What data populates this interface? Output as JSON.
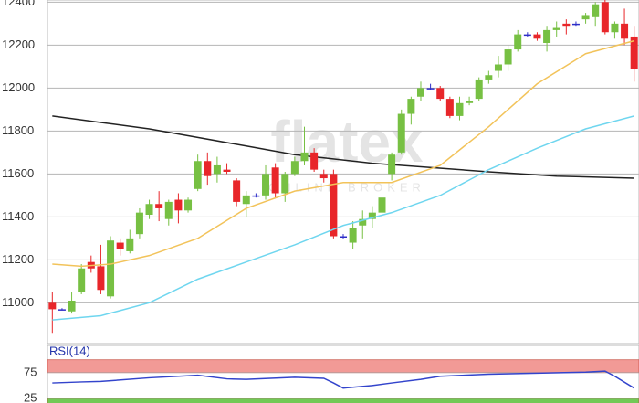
{
  "chart_data": [
    {
      "type": "candlestick",
      "watermark": "flatex",
      "watermark_sub": "ONLINE BROKER",
      "open": [
        11000,
        10970,
        10960,
        11050,
        11190,
        11170,
        11030,
        11280,
        11240,
        11320,
        11410,
        11460,
        11390,
        11480,
        11430,
        11530,
        11660,
        11600,
        11620,
        11570,
        11460,
        11500,
        11500,
        11630,
        11510,
        11600,
        11660,
        11700,
        11600,
        11600,
        11310,
        11280,
        11360,
        11390,
        11420,
        11600,
        11700,
        11880,
        11960,
        12000,
        12000,
        11950,
        11870,
        11930,
        11950,
        12040,
        12080,
        12110,
        12180,
        12250,
        12250,
        12210,
        12270,
        12300,
        12300,
        12320,
        12330,
        12400,
        12260,
        12300,
        12240
      ],
      "high": [
        11050,
        10975,
        11050,
        11180,
        11220,
        11270,
        11310,
        11300,
        11340,
        11440,
        11480,
        11520,
        11480,
        11510,
        11490,
        11690,
        11700,
        11680,
        11650,
        11580,
        11520,
        11510,
        11640,
        11650,
        11610,
        11680,
        11820,
        11720,
        11620,
        11620,
        11320,
        11380,
        11430,
        11450,
        11500,
        11700,
        11900,
        11960,
        12030,
        12020,
        12010,
        11960,
        11960,
        11960,
        12050,
        12080,
        12150,
        12200,
        12270,
        12260,
        12260,
        12290,
        12310,
        12320,
        12310,
        12350,
        12400,
        12410,
        12310,
        12370,
        12290
      ],
      "low": [
        10860,
        10965,
        10950,
        11040,
        11140,
        11040,
        11020,
        11220,
        11230,
        11300,
        11390,
        11380,
        11360,
        11370,
        11420,
        11520,
        11550,
        11560,
        11600,
        11450,
        11400,
        11490,
        11480,
        11490,
        11470,
        11590,
        11640,
        11610,
        11560,
        11300,
        11300,
        11250,
        11300,
        11350,
        11400,
        11570,
        11690,
        11830,
        11940,
        11990,
        11940,
        11860,
        11850,
        11920,
        11940,
        12020,
        12050,
        12080,
        12170,
        12240,
        12220,
        12170,
        12240,
        12250,
        12290,
        12300,
        12290,
        12250,
        12230,
        12200,
        12030
      ],
      "close": [
        10970,
        10970,
        11010,
        11160,
        11160,
        11060,
        11290,
        11250,
        11300,
        11420,
        11460,
        11440,
        11470,
        11430,
        11480,
        11660,
        11590,
        11640,
        11610,
        11470,
        11500,
        11500,
        11600,
        11510,
        11600,
        11660,
        11700,
        11620,
        11580,
        11310,
        11310,
        11350,
        11390,
        11420,
        11490,
        11690,
        11880,
        11950,
        12000,
        12000,
        11950,
        11870,
        11930,
        11940,
        12040,
        12060,
        12110,
        12180,
        12250,
        12250,
        12230,
        12270,
        12280,
        12290,
        12300,
        12340,
        12390,
        12260,
        12300,
        12230,
        12090
      ],
      "up_color": "#77c043",
      "down_color": "#e8262a",
      "doji_color": "#2d2dc8",
      "overlays": [
        {
          "color": "#222222",
          "x": [
            0,
            5,
            10,
            15,
            20,
            25,
            33,
            45,
            52,
            60
          ],
          "values": [
            11870,
            11840,
            11810,
            11770,
            11730,
            11690,
            11650,
            11610,
            11590,
            11580
          ]
        },
        {
          "color": "#f2c35a",
          "x": [
            0,
            3,
            6,
            10,
            15,
            20,
            25,
            30,
            35,
            40,
            45,
            50,
            55,
            60
          ],
          "values": [
            11180,
            11170,
            11180,
            11220,
            11300,
            11440,
            11520,
            11560,
            11560,
            11640,
            11820,
            12020,
            12160,
            12220
          ]
        },
        {
          "color": "#6fd6ef",
          "x": [
            0,
            5,
            10,
            15,
            20,
            25,
            30,
            35,
            40,
            45,
            50,
            55,
            60
          ],
          "values": [
            10920,
            10940,
            11000,
            11110,
            11190,
            11270,
            11360,
            11420,
            11500,
            11620,
            11720,
            11810,
            11870
          ]
        }
      ],
      "xlim": [
        -0.5,
        60.5
      ],
      "ylim": [
        10810,
        12410
      ],
      "yticks": [
        11000,
        11200,
        11400,
        11600,
        11800,
        12000,
        12200,
        12400
      ],
      "grid": true
    },
    {
      "type": "line",
      "title": "RSI(14)",
      "color": "#3344cc",
      "x": [
        0,
        3,
        5,
        10,
        15,
        18,
        20,
        25,
        28,
        29,
        30,
        33,
        35,
        38,
        40,
        45,
        50,
        55,
        57,
        58,
        60
      ],
      "values": [
        55,
        57,
        58,
        65,
        70,
        63,
        62,
        66,
        64,
        55,
        45,
        50,
        55,
        62,
        68,
        72,
        74,
        76,
        78,
        68,
        45
      ],
      "bands": [
        {
          "from": 75,
          "to": 100,
          "color": "#f29a96"
        },
        {
          "from": 0,
          "to": 25,
          "color": "#72c956"
        }
      ],
      "xlim": [
        -0.5,
        60.5
      ],
      "ylim": [
        16,
        128
      ],
      "yticks": [
        25,
        75
      ]
    }
  ]
}
